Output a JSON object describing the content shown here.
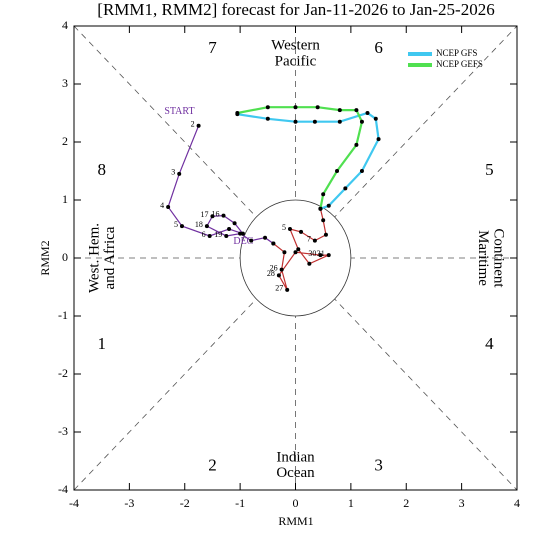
{
  "chart_data": {
    "type": "line",
    "title": "[RMM1, RMM2] forecast for Jan-11-2026 to Jan-25-2026",
    "x_label": "RMM1",
    "y_label": "RMM2",
    "xlim": [
      -4,
      4
    ],
    "ylim": [
      -4,
      4
    ],
    "xticks": [
      -4,
      -3,
      -2,
      -1,
      0,
      1,
      2,
      3,
      4
    ],
    "yticks": [
      -4,
      -3,
      -2,
      -1,
      0,
      1,
      2,
      3,
      4
    ],
    "legend": "upper right",
    "phase_labels": [
      "1",
      "2",
      "3",
      "4",
      "5",
      "6",
      "7",
      "8"
    ],
    "region_labels": {
      "top": [
        "Western",
        "Pacific"
      ],
      "bottom": [
        "Indian",
        "Ocean"
      ],
      "left": [
        "West. Hem.",
        "and Africa"
      ],
      "right": [
        "Maritime",
        "Continent"
      ]
    },
    "annotations": {
      "start": "START",
      "end": "DEC"
    },
    "series": [
      {
        "color": "#7030a0",
        "x": [
          -1.75,
          -2.1,
          -2.3,
          -2.05,
          -1.55,
          -1.2,
          -0.95,
          -1.1,
          -1.3,
          -1.5,
          -1.6,
          -1.25,
          -1.0,
          -0.8,
          -0.55,
          -0.4
        ],
        "y": [
          2.28,
          1.45,
          0.88,
          0.55,
          0.38,
          0.5,
          0.42,
          0.6,
          0.73,
          0.72,
          0.55,
          0.38,
          0.42,
          0.3,
          0.35,
          0.25
        ],
        "labels": [
          "2",
          "3",
          "4",
          "5",
          "6",
          null,
          null,
          null,
          "16",
          "17",
          "18",
          "19",
          null,
          null,
          null,
          null
        ]
      },
      {
        "color": "#c03030",
        "x": [
          -0.4,
          -0.2,
          -0.25,
          -0.15,
          -0.3,
          0.0,
          0.45,
          0.6,
          0.25,
          0.05,
          -0.1,
          0.1,
          0.35,
          0.55,
          0.5,
          0.45
        ],
        "y": [
          0.25,
          0.1,
          -0.2,
          -0.55,
          -0.3,
          0.1,
          0.05,
          0.05,
          -0.1,
          0.15,
          0.5,
          0.45,
          0.3,
          0.4,
          0.65,
          0.85
        ],
        "labels": [
          null,
          null,
          "26",
          "27",
          "28",
          null,
          "30",
          "31",
          null,
          null,
          "5",
          null,
          "7",
          null,
          null,
          null
        ]
      },
      {
        "name": "NCEP GFS",
        "color": "#40c8f0",
        "x": [
          0.45,
          0.6,
          0.9,
          1.2,
          1.5,
          1.45,
          1.3,
          0.8,
          0.35,
          0.0,
          -0.5,
          -1.05
        ],
        "y": [
          0.85,
          0.9,
          1.2,
          1.5,
          2.05,
          2.4,
          2.5,
          2.35,
          2.35,
          2.35,
          2.4,
          2.48
        ]
      },
      {
        "name": "NCEP GEFS",
        "color": "#50e050",
        "x": [
          0.45,
          0.5,
          0.75,
          1.1,
          1.2,
          1.1,
          0.8,
          0.4,
          0.0,
          -0.5,
          -1.05
        ],
        "y": [
          0.85,
          1.1,
          1.5,
          1.95,
          2.35,
          2.55,
          2.55,
          2.6,
          2.6,
          2.6,
          2.5
        ]
      }
    ]
  }
}
